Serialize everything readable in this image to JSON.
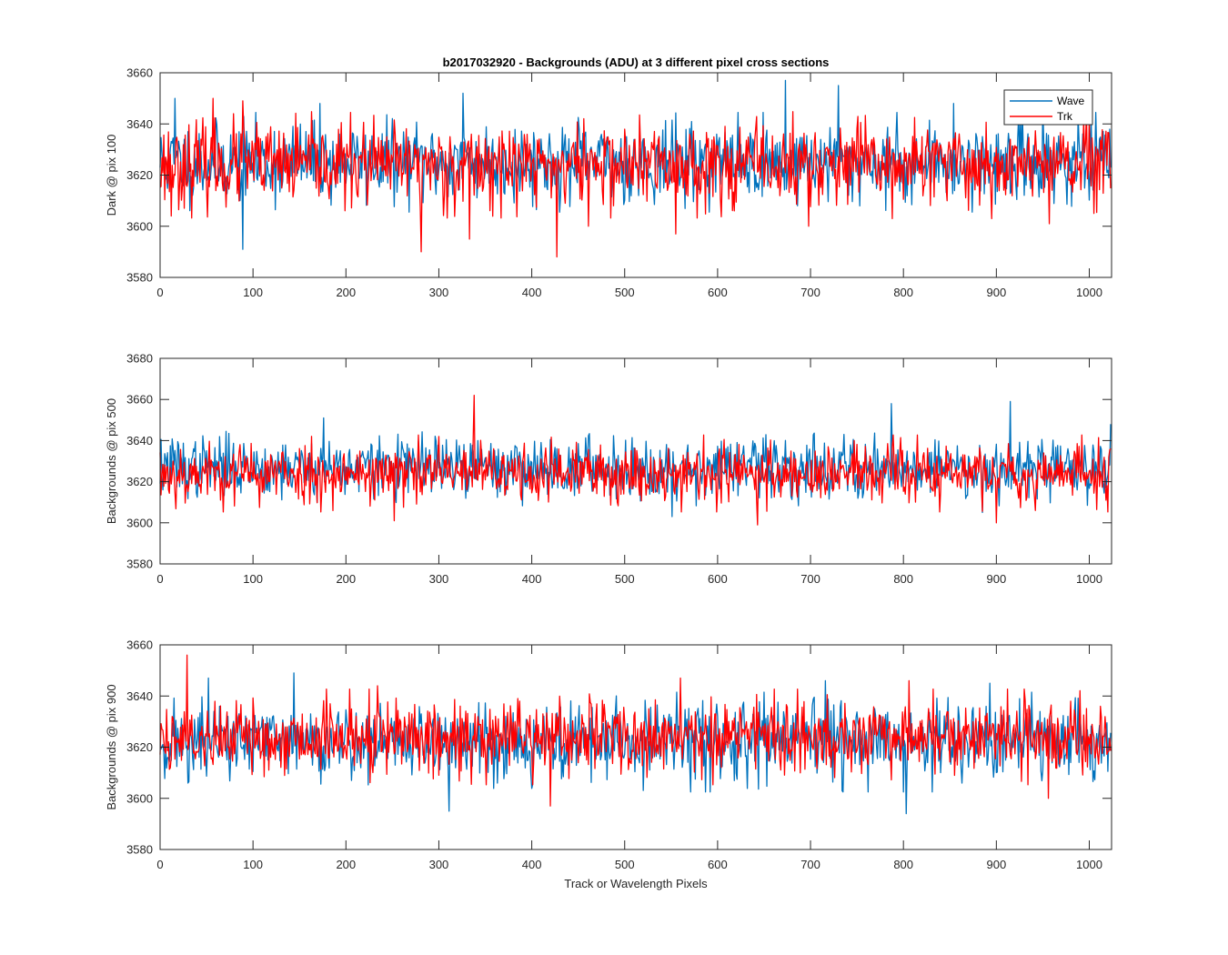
{
  "figure": {
    "title": "b2017032920 - Backgrounds (ADU) at 3 different pixel cross sections",
    "xlabel": "Track or Wavelength Pixels"
  },
  "legend": {
    "entries": [
      {
        "name": "Wave",
        "color": "#0072BD"
      },
      {
        "name": "Trk",
        "color": "#FF0000"
      }
    ],
    "placement": "top-right"
  },
  "chart_data": [
    {
      "type": "line",
      "ylabel": "Dark @ pix 100",
      "xlim": [
        0,
        1024
      ],
      "ylim": [
        3580,
        3660
      ],
      "xticks": [
        0,
        100,
        200,
        300,
        400,
        500,
        600,
        700,
        800,
        900,
        1000
      ],
      "yticks": [
        3580,
        3600,
        3620,
        3640,
        3660
      ],
      "grid": false,
      "series": [
        {
          "name": "Wave",
          "color": "#0072BD",
          "mean": 3625,
          "std": 7.5,
          "seed": 11,
          "spikes": [
            [
              89,
              3591
            ],
            [
              673,
              3657
            ],
            [
              730,
              3655
            ],
            [
              326,
              3652
            ],
            [
              16,
              3650
            ],
            [
              854,
              3648
            ],
            [
              172,
              3648
            ],
            [
              950,
              3648
            ]
          ]
        },
        {
          "name": "Trk",
          "color": "#FF0000",
          "mean": 3624,
          "std": 8.0,
          "seed": 23,
          "spikes": [
            [
              281,
              3590
            ],
            [
              427,
              3588
            ],
            [
              333,
              3595
            ],
            [
              555,
              3597
            ],
            [
              461,
              3600
            ],
            [
              57,
              3650
            ],
            [
              89,
              3649
            ],
            [
              12,
              3604
            ],
            [
              698,
              3600
            ],
            [
              788,
              3603
            ],
            [
              895,
              3603
            ],
            [
              957,
              3601
            ]
          ]
        }
      ]
    },
    {
      "type": "line",
      "ylabel": "Backgrounds @ pix 500",
      "xlim": [
        0,
        1024
      ],
      "ylim": [
        3580,
        3680
      ],
      "xticks": [
        0,
        100,
        200,
        300,
        400,
        500,
        600,
        700,
        800,
        900,
        1000
      ],
      "yticks": [
        3580,
        3600,
        3620,
        3640,
        3660,
        3680
      ],
      "grid": false,
      "series": [
        {
          "name": "Wave",
          "color": "#0072BD",
          "mean": 3627,
          "std": 7.2,
          "seed": 37,
          "spikes": [
            [
              787,
              3658
            ],
            [
              915,
              3659
            ],
            [
              176,
              3651
            ],
            [
              551,
              3603
            ],
            [
              885,
              3605
            ],
            [
              1023,
              3648
            ]
          ]
        },
        {
          "name": "Trk",
          "color": "#FF0000",
          "mean": 3624,
          "std": 7.2,
          "seed": 53,
          "spikes": [
            [
              338,
              3662
            ],
            [
              252,
              3652
            ],
            [
              252,
              3601
            ],
            [
              643,
              3599
            ],
            [
              900,
              3600
            ],
            [
              942,
              3606
            ],
            [
              300,
              3642
            ]
          ]
        }
      ]
    },
    {
      "type": "line",
      "ylabel": "Backgrounds @ pix 900",
      "xlim": [
        0,
        1024
      ],
      "ylim": [
        3580,
        3660
      ],
      "xticks": [
        0,
        100,
        200,
        300,
        400,
        500,
        600,
        700,
        800,
        900,
        1000
      ],
      "yticks": [
        3580,
        3600,
        3620,
        3640,
        3660
      ],
      "grid": false,
      "series": [
        {
          "name": "Wave",
          "color": "#0072BD",
          "mean": 3622,
          "std": 7.5,
          "seed": 71,
          "spikes": [
            [
              144,
              3649
            ],
            [
              311,
              3595
            ],
            [
              803,
              3594
            ],
            [
              52,
              3647
            ],
            [
              893,
              3645
            ],
            [
              716,
              3646
            ]
          ]
        },
        {
          "name": "Trk",
          "color": "#FF0000",
          "mean": 3624,
          "std": 7.2,
          "seed": 89,
          "spikes": [
            [
              29,
              3656
            ],
            [
              420,
              3597
            ],
            [
              560,
              3647
            ],
            [
              806,
              3646
            ],
            [
              956,
              3600
            ],
            [
              234,
              3644
            ]
          ]
        }
      ]
    }
  ]
}
